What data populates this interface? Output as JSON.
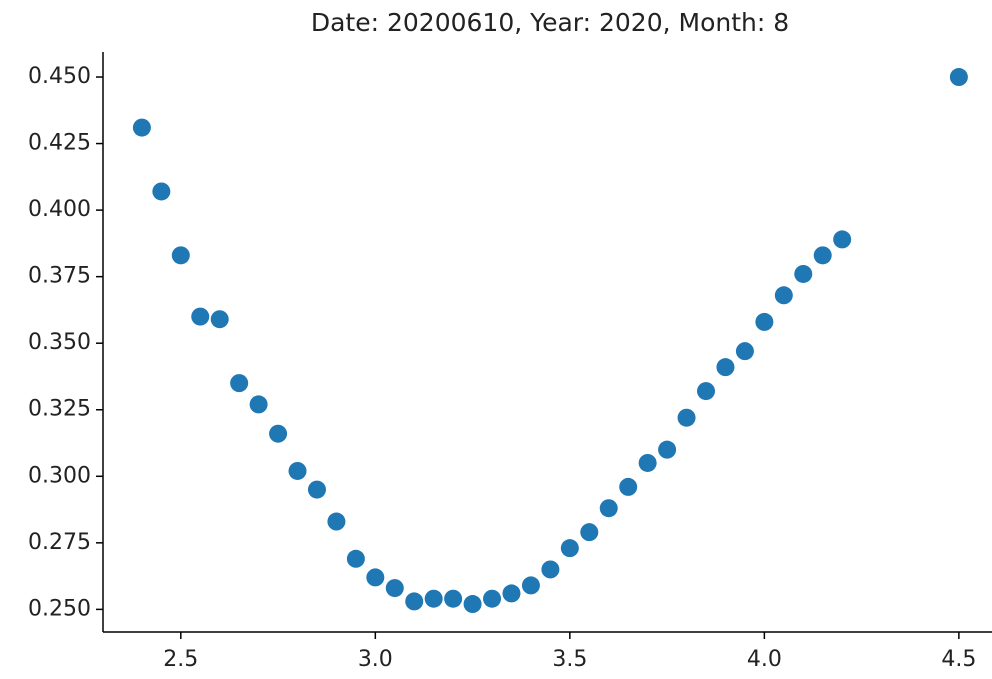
{
  "chart_data": {
    "type": "scatter",
    "title": "Date: 20200610, Year: 2020, Month: 8",
    "color": "#1f77b4",
    "x": [
      2.4,
      2.45,
      2.5,
      2.55,
      2.6,
      2.65,
      2.7,
      2.75,
      2.8,
      2.85,
      2.9,
      2.95,
      3.0,
      3.05,
      3.1,
      3.15,
      3.2,
      3.25,
      3.3,
      3.35,
      3.4,
      3.45,
      3.5,
      3.55,
      3.6,
      3.65,
      3.7,
      3.75,
      3.8,
      3.85,
      3.9,
      3.95,
      4.0,
      4.05,
      4.1,
      4.15,
      4.2,
      4.5
    ],
    "values": [
      0.431,
      0.407,
      0.383,
      0.36,
      0.359,
      0.335,
      0.327,
      0.316,
      0.302,
      0.295,
      0.283,
      0.269,
      0.262,
      0.258,
      0.253,
      0.254,
      0.254,
      0.252,
      0.254,
      0.256,
      0.259,
      0.265,
      0.273,
      0.279,
      0.288,
      0.296,
      0.305,
      0.31,
      0.322,
      0.332,
      0.341,
      0.347,
      0.358,
      0.368,
      0.376,
      0.383,
      0.389,
      0.45
    ],
    "xlim": [
      2.3,
      4.58
    ],
    "ylim": [
      0.2415,
      0.4594
    ],
    "xticks": [
      2.5,
      {
        "value": 3.0,
        "label": "3.0"
      },
      3.5,
      {
        "value": 4.0,
        "label": "4.0"
      },
      4.5
    ],
    "yticks": [
      {
        "value": 0.25,
        "label": "0.250"
      },
      {
        "value": 0.275,
        "label": "0.275"
      },
      {
        "value": 0.3,
        "label": "0.300"
      },
      {
        "value": 0.325,
        "label": "0.325"
      },
      {
        "value": 0.35,
        "label": "0.350"
      },
      {
        "value": 0.375,
        "label": "0.375"
      },
      {
        "value": 0.4,
        "label": "0.400"
      },
      {
        "value": 0.425,
        "label": "0.425"
      },
      {
        "value": 0.45,
        "label": "0.450"
      }
    ]
  }
}
